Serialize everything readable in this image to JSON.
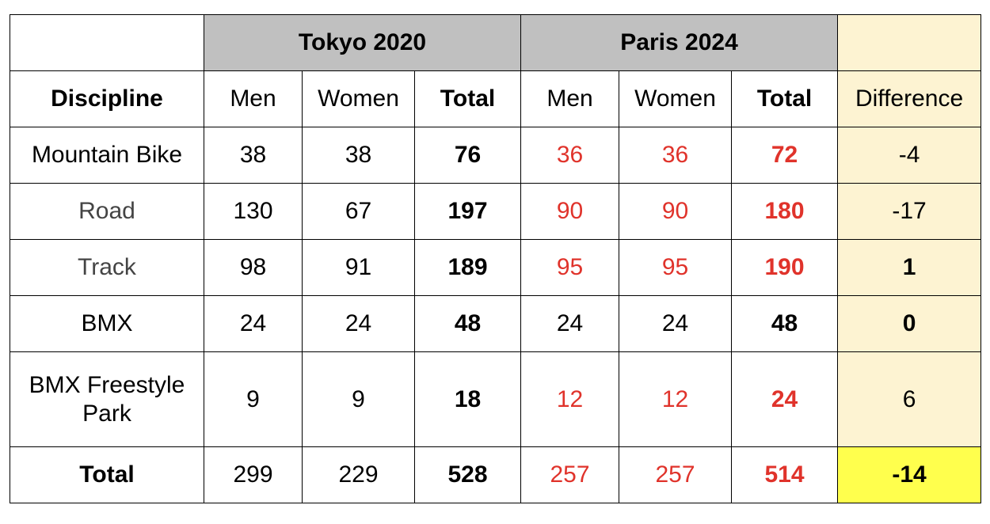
{
  "table": {
    "group_headers": {
      "tokyo": "Tokyo 2020",
      "paris": "Paris 2024"
    },
    "columns": {
      "discipline": "Discipline",
      "tokyo_men": "Men",
      "tokyo_women": "Women",
      "tokyo_total": "Total",
      "paris_men": "Men",
      "paris_women": "Women",
      "paris_total": "Total",
      "difference": "Difference"
    },
    "rows": [
      {
        "discipline": "Mountain Bike",
        "tokyo_men": "38",
        "tokyo_women": "38",
        "tokyo_total": "76",
        "paris_men": "36",
        "paris_women": "36",
        "paris_total": "72",
        "difference": "-4"
      },
      {
        "discipline": "Road",
        "tokyo_men": "130",
        "tokyo_women": "67",
        "tokyo_total": "197",
        "paris_men": "90",
        "paris_women": "90",
        "paris_total": "180",
        "difference": "-17"
      },
      {
        "discipline": "Track",
        "tokyo_men": "98",
        "tokyo_women": "91",
        "tokyo_total": "189",
        "paris_men": "95",
        "paris_women": "95",
        "paris_total": "190",
        "difference": "1"
      },
      {
        "discipline": "BMX",
        "tokyo_men": "24",
        "tokyo_women": "24",
        "tokyo_total": "48",
        "paris_men": "24",
        "paris_women": "24",
        "paris_total": "48",
        "difference": "0"
      },
      {
        "discipline_line1": "BMX Freestyle",
        "discipline_line2": "Park",
        "tokyo_men": "9",
        "tokyo_women": "9",
        "tokyo_total": "18",
        "paris_men": "12",
        "paris_women": "12",
        "paris_total": "24",
        "difference": "6"
      }
    ],
    "total_row": {
      "label": "Total",
      "tokyo_men": "299",
      "tokyo_women": "229",
      "tokyo_total": "528",
      "paris_men": "257",
      "paris_women": "257",
      "paris_total": "514",
      "difference": "-14"
    }
  },
  "colors": {
    "header_grey": "#c0c0c0",
    "difference_bg": "#fdf3d2",
    "difference_total_bg": "#ffff4d",
    "paris_changed_red": "#e0332b"
  }
}
